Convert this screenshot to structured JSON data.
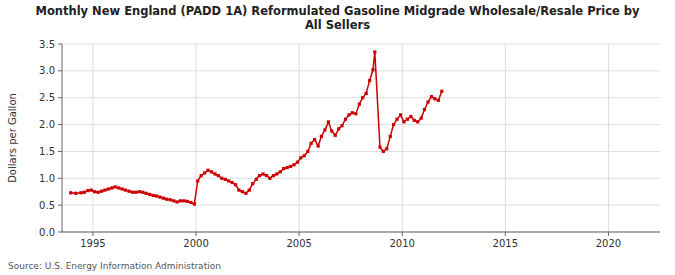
{
  "chart_data": {
    "type": "line",
    "title": "Monthly New England (PADD 1A) Reformulated Gasoline Midgrade Wholesale/Resale Price by\nAll Sellers",
    "ylabel": "Dollars per Gallon",
    "annotations": [
      "Source: U.S. Energy Information Administration"
    ],
    "color": "#cc0000",
    "marker": "square",
    "line_style": "solid",
    "grid": true,
    "xlim": [
      1993.5,
      2022.5
    ],
    "ylim": [
      0.0,
      3.5
    ],
    "xticks": [
      1995,
      2000,
      2005,
      2010,
      2015,
      2020
    ],
    "yticks": [
      {
        "value": 0.0,
        "label": "0.0"
      },
      0.5,
      {
        "value": 1.0,
        "label": "1.0"
      },
      1.5,
      {
        "value": 2.0,
        "label": "2.0"
      },
      2.5,
      {
        "value": 3.0,
        "label": "3.0"
      },
      3.5
    ],
    "x": [
      1993.92,
      1994.17,
      1994.42,
      1994.58,
      1994.75,
      1994.92,
      1995.08,
      1995.25,
      1995.42,
      1995.58,
      1995.75,
      1995.92,
      1996.08,
      1996.25,
      1996.42,
      1996.58,
      1996.75,
      1996.92,
      1997.08,
      1997.25,
      1997.42,
      1997.58,
      1997.75,
      1997.92,
      1998.08,
      1998.25,
      1998.42,
      1998.58,
      1998.75,
      1998.92,
      1999.08,
      1999.25,
      1999.42,
      1999.58,
      1999.75,
      1999.92,
      2000.08,
      2000.25,
      2000.42,
      2000.58,
      2000.75,
      2000.92,
      2001.08,
      2001.25,
      2001.42,
      2001.58,
      2001.75,
      2001.92,
      2002.08,
      2002.25,
      2002.42,
      2002.58,
      2002.75,
      2002.92,
      2003.08,
      2003.25,
      2003.42,
      2003.58,
      2003.75,
      2003.92,
      2004.08,
      2004.25,
      2004.42,
      2004.58,
      2004.75,
      2004.92,
      2005.08,
      2005.25,
      2005.42,
      2005.58,
      2005.75,
      2005.92,
      2006.08,
      2006.25,
      2006.42,
      2006.58,
      2006.75,
      2006.92,
      2007.08,
      2007.25,
      2007.42,
      2007.58,
      2007.75,
      2007.92,
      2008.08,
      2008.25,
      2008.42,
      2008.58,
      2008.67,
      2008.92,
      2009.08,
      2009.25,
      2009.42,
      2009.58,
      2009.75,
      2009.92,
      2010.08,
      2010.25,
      2010.42,
      2010.58,
      2010.75,
      2010.92,
      2011.08,
      2011.25,
      2011.42,
      2011.58,
      2011.75,
      2011.92
    ],
    "values": [
      0.73,
      0.72,
      0.73,
      0.74,
      0.77,
      0.78,
      0.75,
      0.74,
      0.76,
      0.78,
      0.8,
      0.82,
      0.84,
      0.82,
      0.8,
      0.78,
      0.76,
      0.74,
      0.74,
      0.75,
      0.74,
      0.72,
      0.7,
      0.68,
      0.67,
      0.65,
      0.63,
      0.61,
      0.6,
      0.58,
      0.56,
      0.58,
      0.58,
      0.57,
      0.55,
      0.52,
      0.95,
      1.05,
      1.1,
      1.15,
      1.12,
      1.08,
      1.05,
      1.0,
      0.98,
      0.95,
      0.92,
      0.88,
      0.78,
      0.75,
      0.72,
      0.78,
      0.9,
      0.98,
      1.05,
      1.08,
      1.05,
      1.0,
      1.05,
      1.08,
      1.12,
      1.18,
      1.2,
      1.22,
      1.25,
      1.3,
      1.38,
      1.42,
      1.5,
      1.65,
      1.72,
      1.6,
      1.78,
      1.9,
      2.05,
      1.88,
      1.8,
      1.92,
      1.98,
      2.1,
      2.18,
      2.22,
      2.2,
      2.38,
      2.5,
      2.58,
      2.82,
      3.02,
      3.35,
      1.58,
      1.5,
      1.55,
      1.78,
      2.0,
      2.1,
      2.18,
      2.05,
      2.1,
      2.15,
      2.08,
      2.05,
      2.12,
      2.28,
      2.42,
      2.52,
      2.48,
      2.45,
      2.62
    ]
  }
}
